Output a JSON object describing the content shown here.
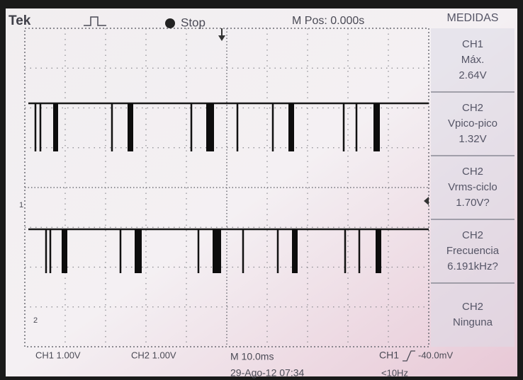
{
  "header": {
    "brand": "Tek",
    "state": "Stop",
    "position": "M Pos: 0.000s",
    "panel_title": "MEDIDAS"
  },
  "measurements": [
    {
      "channel": "CH1",
      "name": "Máx.",
      "value": "2.64V"
    },
    {
      "channel": "CH2",
      "name": "Vpico-pico",
      "value": "1.32V"
    },
    {
      "channel": "CH2",
      "name": "Vrms-ciclo",
      "value": "1.70V?"
    },
    {
      "channel": "CH2",
      "name": "Frecuencia",
      "value": "6.191kHz?"
    },
    {
      "channel": "CH2",
      "name": "Ninguna"
    }
  ],
  "markers": [
    "1",
    "2"
  ],
  "footer": {
    "ch1_scale": "CH1 1.00V",
    "ch2_scale": "CH2 1.00V",
    "timebase": "M 10.0ms",
    "trigger_source": "CH1",
    "trigger_level": "-40.0mV",
    "date": "29-Ago-12 07:34",
    "frequency": "<10Hz"
  }
}
